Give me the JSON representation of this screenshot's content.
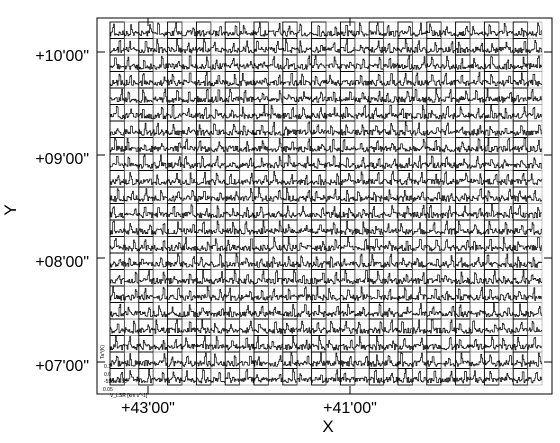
{
  "chart_data": {
    "type": "line",
    "title": "",
    "xlabel": "X",
    "ylabel": "Y",
    "x_ticks": [
      "+43'00\"",
      "+41'00\""
    ],
    "y_ticks": [
      "+10'00\"",
      "+09'00\"",
      "+08'00\"",
      "+07'00\""
    ],
    "grid": {
      "columns": 30,
      "rows": 22
    },
    "inset_axes": {
      "ylabel": "Ta*(K)",
      "y_ticks": [
        "0.1",
        "0.0",
        "0.05"
      ],
      "x_ticks": [
        "-550",
        "-450"
      ],
      "xlabel": "V_LSR [km s^-1]"
    },
    "colors": {
      "spectrum": "#000000",
      "grid": "#000000",
      "background": "#ffffff"
    }
  }
}
